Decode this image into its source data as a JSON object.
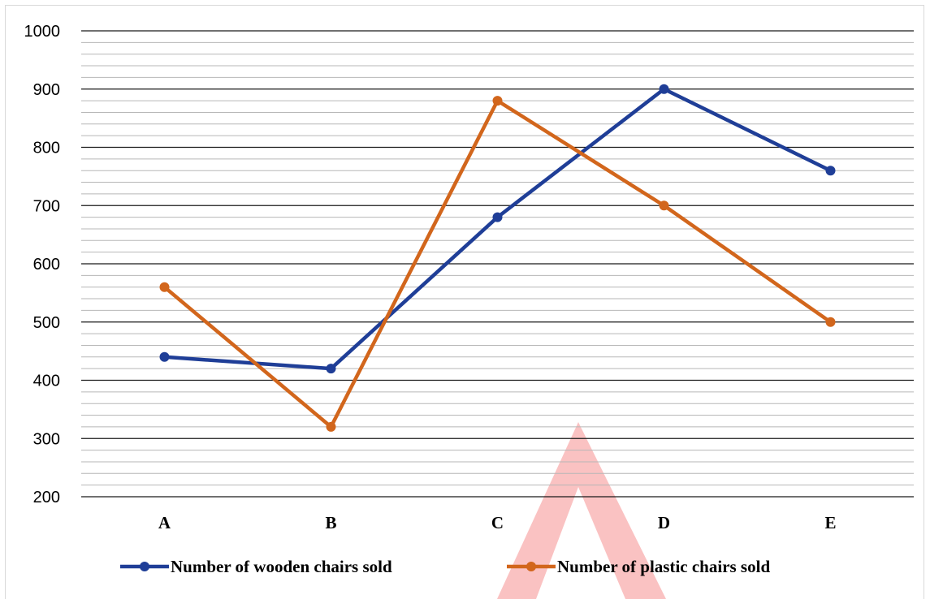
{
  "chart_data": {
    "type": "line",
    "title": "",
    "xlabel": "",
    "ylabel": "",
    "categories": [
      "A",
      "B",
      "C",
      "D",
      "E"
    ],
    "ylim": [
      200,
      1000
    ],
    "yticks": [
      200,
      300,
      400,
      500,
      600,
      700,
      800,
      900,
      1000
    ],
    "minor_step": 20,
    "grid": true,
    "legend_position": "bottom",
    "series": [
      {
        "name": "Number of wooden chairs sold",
        "color": "#1f3e97",
        "values": [
          440,
          420,
          680,
          900,
          760
        ]
      },
      {
        "name": "Number of plastic chairs sold",
        "color": "#d2661c",
        "values": [
          560,
          320,
          880,
          700,
          500
        ]
      }
    ]
  }
}
